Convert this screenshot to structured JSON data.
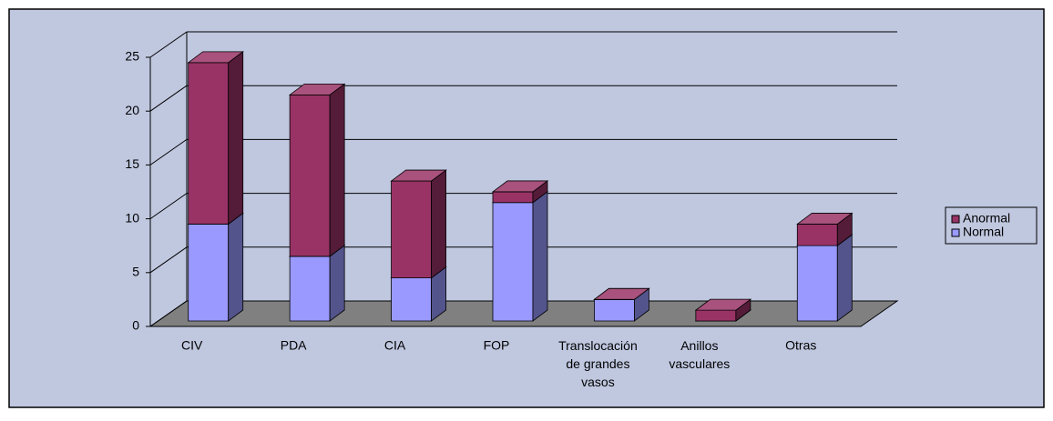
{
  "chart_data": {
    "type": "bar3d_stacked",
    "categories": [
      "CIV",
      "PDA",
      "CIA",
      "FOP",
      "Translocación de grandes vasos",
      "Anillos vasculares",
      "Otras"
    ],
    "series": [
      {
        "name": "Normal",
        "color": "#9999ff",
        "values": [
          9,
          6,
          4,
          11,
          2,
          0,
          7
        ]
      },
      {
        "name": "Anormal",
        "color": "#993366",
        "values": [
          15,
          15,
          9,
          1,
          0,
          1,
          2
        ]
      }
    ],
    "ylim": [
      0,
      25
    ],
    "yticks": [
      0,
      5,
      10,
      15,
      20,
      25
    ],
    "grid": true,
    "legend": "right"
  }
}
